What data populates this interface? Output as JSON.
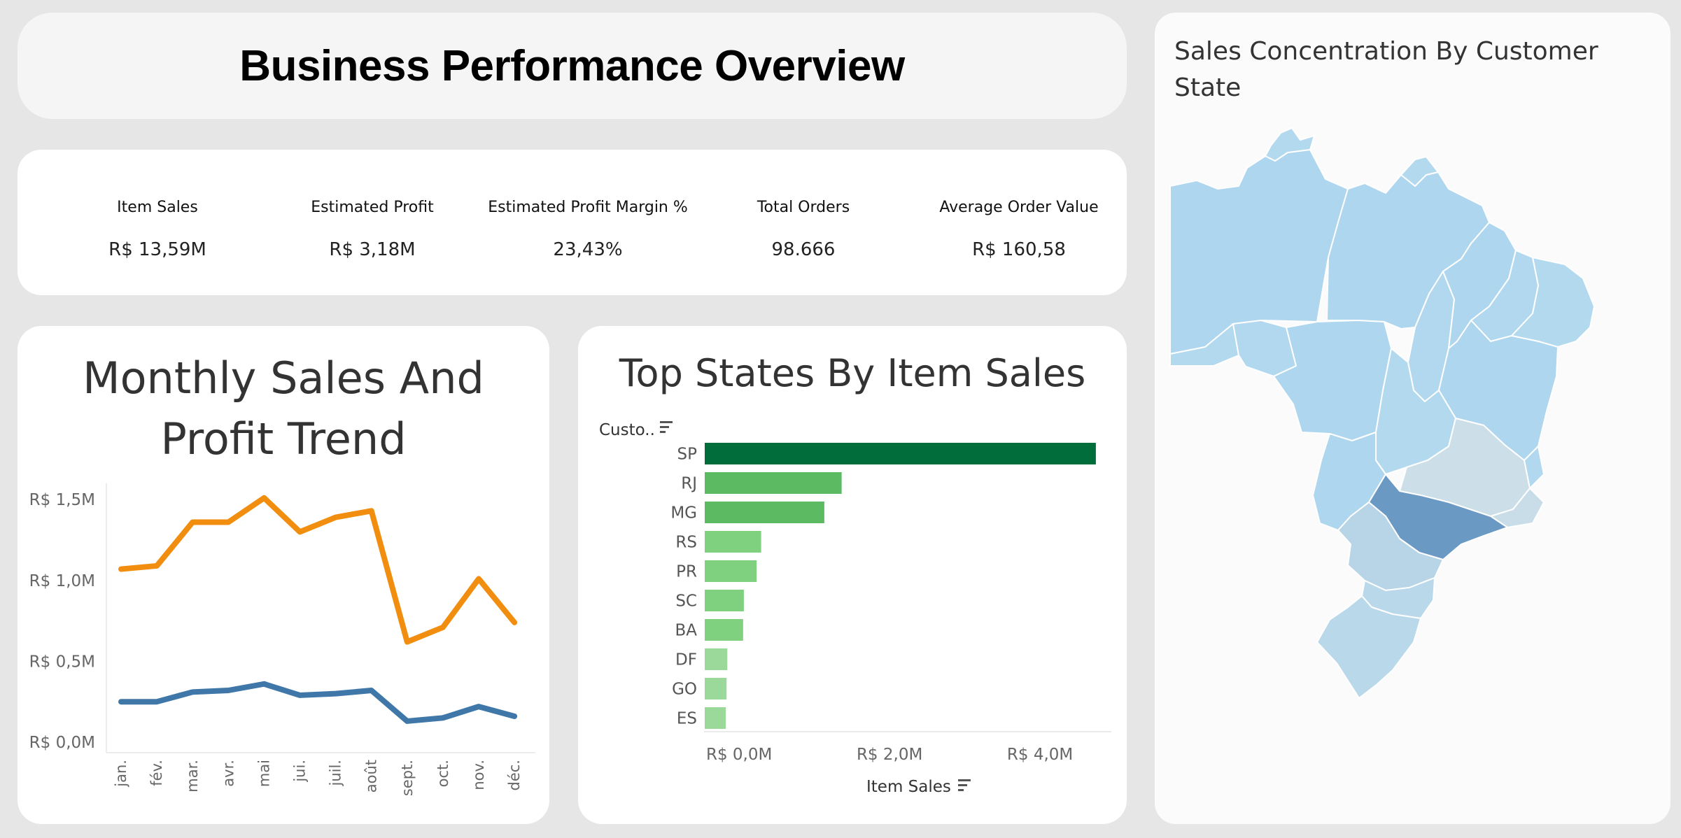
{
  "dashboard_title": "Business Performance Overview",
  "kpis": [
    {
      "label": "Item Sales",
      "value": "R$ 13,59M"
    },
    {
      "label": "Estimated Profit",
      "value": "R$ 3,18M"
    },
    {
      "label": "Estimated Profit Margin %",
      "value": "23,43%"
    },
    {
      "label": "Total Orders",
      "value": "98.666"
    },
    {
      "label": "Average Order Value",
      "value": "R$ 160,58"
    }
  ],
  "line_chart": {
    "title_line1": "Monthly Sales And",
    "title_line2": "Profit Trend"
  },
  "bar_chart": {
    "title": "Top States By Item Sales",
    "row_header": "Custo..",
    "axis_title": "Item Sales"
  },
  "map": {
    "title": "Sales Concentration By Customer State"
  },
  "colors": {
    "sales_line": "#f28e0f",
    "profit_line": "#3f77a8",
    "bar_dark": "#006d3b",
    "bar_mid": "#5bba62",
    "bar_light": "#7fd17f",
    "bar_lighter": "#9ad99a"
  },
  "chart_data": [
    {
      "type": "line",
      "x": [
        "jan.",
        "fév.",
        "mar.",
        "avr.",
        "mai",
        "jui.",
        "juil.",
        "août",
        "sept.",
        "oct.",
        "nov.",
        "déc."
      ],
      "series": [
        {
          "values": [
            1.07,
            1.09,
            1.36,
            1.36,
            1.51,
            1.3,
            1.39,
            1.43,
            0.62,
            0.71,
            1.01,
            0.74
          ]
        },
        {
          "values": [
            0.25,
            0.25,
            0.31,
            0.32,
            0.36,
            0.29,
            0.3,
            0.32,
            0.13,
            0.15,
            0.22,
            0.16
          ]
        }
      ],
      "yticks": [
        "R$ 0,0M",
        "R$ 0,5M",
        "R$ 1,0M",
        "R$ 1,5M"
      ],
      "ytick_values": [
        0,
        0.5,
        1.0,
        1.5
      ],
      "ylim": [
        0,
        1.6
      ],
      "grid": false
    },
    {
      "type": "bar",
      "orientation": "horizontal",
      "categories": [
        "SP",
        "RJ",
        "MG",
        "RS",
        "PR",
        "SC",
        "BA",
        "DF",
        "GO",
        "ES"
      ],
      "values": [
        5.2,
        1.82,
        1.59,
        0.75,
        0.69,
        0.52,
        0.51,
        0.3,
        0.29,
        0.28
      ],
      "xticks": [
        "R$ 0,0M",
        "R$ 2,0M",
        "R$ 4,0M"
      ],
      "xtick_values": [
        0,
        2,
        4
      ],
      "xlim": [
        0,
        5.35
      ],
      "xlabel": "Item Sales"
    }
  ]
}
